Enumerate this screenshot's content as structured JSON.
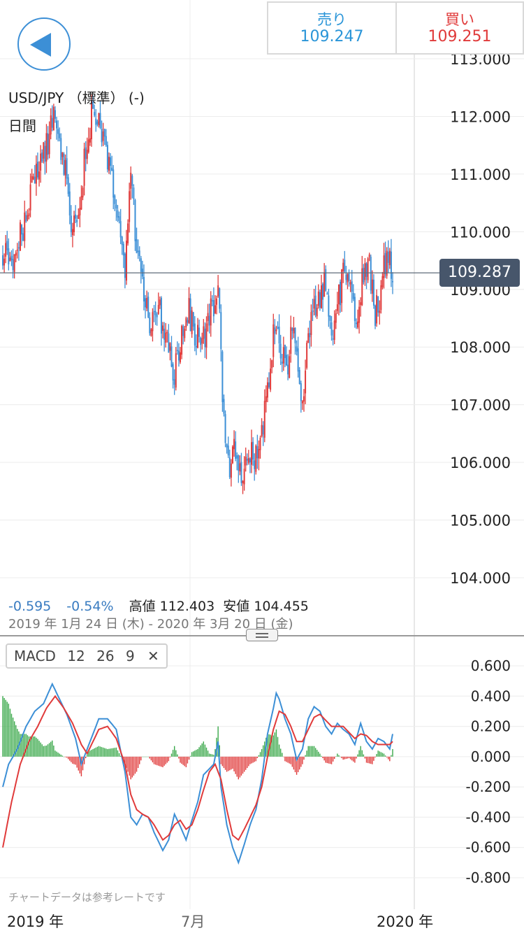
{
  "header": {
    "sell_label": "売り",
    "sell_price": "109.247",
    "buy_label": "買い",
    "buy_price": "109.251",
    "sell_color": "#2a95d8",
    "buy_color": "#e03a3a"
  },
  "back_icon": "back-arrow-icon",
  "symbol": "USD/JPY （標準） (-)",
  "period": "日間",
  "current_price_label": "109.287",
  "stats": {
    "change": "-0.595",
    "change_pct": "-0.54%",
    "high": "高値 112.403",
    "low": "安値 104.455",
    "range": "2019 年 1月 24 日 (木) - 2020 年 3月 20 日 (金)"
  },
  "macd_chip": {
    "name": "MACD",
    "p1": "12",
    "p2": "26",
    "p3": "9",
    "close": "✕"
  },
  "footnote": "チャートデータは参考レートです",
  "x_labels": {
    "start": "2019 年",
    "mid": "7月",
    "end": "2020 年"
  },
  "chart_data": [
    {
      "type": "candlestick",
      "title": "USD/JPY （標準） (-)",
      "ylim": [
        104.0,
        113.0
      ],
      "yticks": [
        "113.000",
        "112.000",
        "111.000",
        "110.000",
        "109.000",
        "108.000",
        "107.000",
        "106.000",
        "105.000",
        "104.000"
      ],
      "current_price": 109.287,
      "up_color": "#e03a3a",
      "down_color": "#3c8fd6",
      "grid": true,
      "anchors": [
        [
          0,
          109.6
        ],
        [
          6,
          109.4
        ],
        [
          13,
          110.0
        ],
        [
          22,
          110.9
        ],
        [
          30,
          111.5
        ],
        [
          36,
          112.0
        ],
        [
          42,
          111.2
        ],
        [
          48,
          109.9
        ],
        [
          55,
          111.0
        ],
        [
          61,
          112.0
        ],
        [
          66,
          111.8
        ],
        [
          72,
          111.2
        ],
        [
          78,
          110.4
        ],
        [
          84,
          109.4
        ],
        [
          88,
          110.8
        ],
        [
          93,
          109.6
        ],
        [
          97,
          108.9
        ],
        [
          102,
          108.3
        ],
        [
          108,
          108.6
        ],
        [
          113,
          108.1
        ],
        [
          118,
          107.5
        ],
        [
          124,
          108.4
        ],
        [
          128,
          108.6
        ],
        [
          133,
          108.1
        ],
        [
          138,
          108.2
        ],
        [
          142,
          108.5
        ],
        [
          146,
          108.9
        ],
        [
          148,
          109.1
        ],
        [
          152,
          106.7
        ],
        [
          156,
          105.8
        ],
        [
          160,
          106.3
        ],
        [
          165,
          105.8
        ],
        [
          170,
          106.2
        ],
        [
          176,
          106.0
        ],
        [
          182,
          107.3
        ],
        [
          186,
          108.2
        ],
        [
          190,
          108.0
        ],
        [
          195,
          107.6
        ],
        [
          200,
          108.5
        ],
        [
          205,
          106.8
        ],
        [
          211,
          108.3
        ],
        [
          216,
          108.8
        ],
        [
          222,
          109.1
        ],
        [
          226,
          108.2
        ],
        [
          231,
          108.9
        ],
        [
          236,
          109.4
        ],
        [
          240,
          108.8
        ],
        [
          244,
          108.6
        ],
        [
          248,
          109.3
        ],
        [
          252,
          109.5
        ],
        [
          256,
          108.5
        ],
        [
          260,
          109.0
        ],
        [
          264,
          109.7
        ],
        [
          268,
          109.287
        ]
      ],
      "n_candles": 269,
      "x_span_dates": [
        "2019-01-24",
        "2020-03-20"
      ]
    },
    {
      "type": "line",
      "title": "MACD",
      "params": [
        12,
        26,
        9
      ],
      "ylim": [
        -0.8,
        0.6
      ],
      "yticks": [
        "0.600",
        "0.400",
        "0.200",
        "0.000",
        "-0.200",
        "-0.400",
        "-0.600",
        "-0.800"
      ],
      "series": [
        {
          "role": "macd",
          "color": "#3c8fd6",
          "points": [
            [
              0,
              -0.2
            ],
            [
              4,
              -0.05
            ],
            [
              10,
              0.05
            ],
            [
              16,
              0.2
            ],
            [
              22,
              0.3
            ],
            [
              28,
              0.35
            ],
            [
              34,
              0.48
            ],
            [
              38,
              0.4
            ],
            [
              44,
              0.28
            ],
            [
              50,
              0.12
            ],
            [
              54,
              -0.05
            ],
            [
              58,
              0.05
            ],
            [
              62,
              0.15
            ],
            [
              66,
              0.25
            ],
            [
              72,
              0.25
            ],
            [
              78,
              0.18
            ],
            [
              84,
              -0.1
            ],
            [
              88,
              -0.4
            ],
            [
              92,
              -0.45
            ],
            [
              96,
              -0.38
            ],
            [
              100,
              -0.4
            ],
            [
              104,
              -0.5
            ],
            [
              110,
              -0.62
            ],
            [
              114,
              -0.55
            ],
            [
              118,
              -0.38
            ],
            [
              122,
              -0.46
            ],
            [
              126,
              -0.55
            ],
            [
              130,
              -0.42
            ],
            [
              134,
              -0.3
            ],
            [
              138,
              -0.12
            ],
            [
              142,
              -0.08
            ],
            [
              145,
              -0.05
            ],
            [
              148,
              0.1
            ],
            [
              150,
              -0.2
            ],
            [
              154,
              -0.45
            ],
            [
              158,
              -0.6
            ],
            [
              162,
              -0.7
            ],
            [
              166,
              -0.58
            ],
            [
              170,
              -0.45
            ],
            [
              174,
              -0.35
            ],
            [
              178,
              -0.15
            ],
            [
              182,
              0.15
            ],
            [
              186,
              0.32
            ],
            [
              188,
              0.42
            ],
            [
              190,
              0.38
            ],
            [
              194,
              0.25
            ],
            [
              198,
              0.15
            ],
            [
              202,
              -0.02
            ],
            [
              206,
              0.05
            ],
            [
              210,
              0.25
            ],
            [
              214,
              0.33
            ],
            [
              218,
              0.3
            ],
            [
              222,
              0.2
            ],
            [
              226,
              0.15
            ],
            [
              230,
              0.22
            ],
            [
              234,
              0.18
            ],
            [
              238,
              0.15
            ],
            [
              242,
              0.08
            ],
            [
              246,
              0.22
            ],
            [
              250,
              0.1
            ],
            [
              254,
              0.05
            ],
            [
              258,
              0.12
            ],
            [
              262,
              0.1
            ],
            [
              266,
              0.05
            ],
            [
              268,
              0.15
            ]
          ]
        },
        {
          "role": "signal",
          "color": "#e03a3a",
          "points": [
            [
              0,
              -0.6
            ],
            [
              6,
              -0.3
            ],
            [
              12,
              -0.05
            ],
            [
              18,
              0.1
            ],
            [
              24,
              0.2
            ],
            [
              30,
              0.32
            ],
            [
              36,
              0.4
            ],
            [
              42,
              0.32
            ],
            [
              48,
              0.22
            ],
            [
              54,
              0.08
            ],
            [
              58,
              0.02
            ],
            [
              62,
              0.1
            ],
            [
              66,
              0.18
            ],
            [
              72,
              0.2
            ],
            [
              78,
              0.12
            ],
            [
              84,
              -0.05
            ],
            [
              88,
              -0.25
            ],
            [
              92,
              -0.35
            ],
            [
              96,
              -0.38
            ],
            [
              100,
              -0.4
            ],
            [
              104,
              -0.45
            ],
            [
              110,
              -0.55
            ],
            [
              114,
              -0.52
            ],
            [
              118,
              -0.45
            ],
            [
              122,
              -0.42
            ],
            [
              126,
              -0.48
            ],
            [
              130,
              -0.45
            ],
            [
              134,
              -0.35
            ],
            [
              138,
              -0.22
            ],
            [
              142,
              -0.1
            ],
            [
              146,
              -0.05
            ],
            [
              150,
              -0.15
            ],
            [
              154,
              -0.35
            ],
            [
              158,
              -0.52
            ],
            [
              162,
              -0.55
            ],
            [
              166,
              -0.48
            ],
            [
              170,
              -0.4
            ],
            [
              174,
              -0.32
            ],
            [
              178,
              -0.2
            ],
            [
              182,
              0.0
            ],
            [
              186,
              0.18
            ],
            [
              190,
              0.3
            ],
            [
              194,
              0.28
            ],
            [
              198,
              0.2
            ],
            [
              202,
              0.1
            ],
            [
              206,
              0.1
            ],
            [
              210,
              0.18
            ],
            [
              214,
              0.26
            ],
            [
              218,
              0.28
            ],
            [
              222,
              0.24
            ],
            [
              226,
              0.2
            ],
            [
              230,
              0.2
            ],
            [
              234,
              0.2
            ],
            [
              238,
              0.16
            ],
            [
              242,
              0.12
            ],
            [
              246,
              0.15
            ],
            [
              250,
              0.14
            ],
            [
              254,
              0.1
            ],
            [
              258,
              0.08
            ],
            [
              262,
              0.08
            ],
            [
              266,
              0.08
            ],
            [
              268,
              0.1
            ]
          ]
        }
      ],
      "histogram_colors": {
        "positive": "#3aa84a",
        "negative": "#e03a3a"
      }
    }
  ]
}
